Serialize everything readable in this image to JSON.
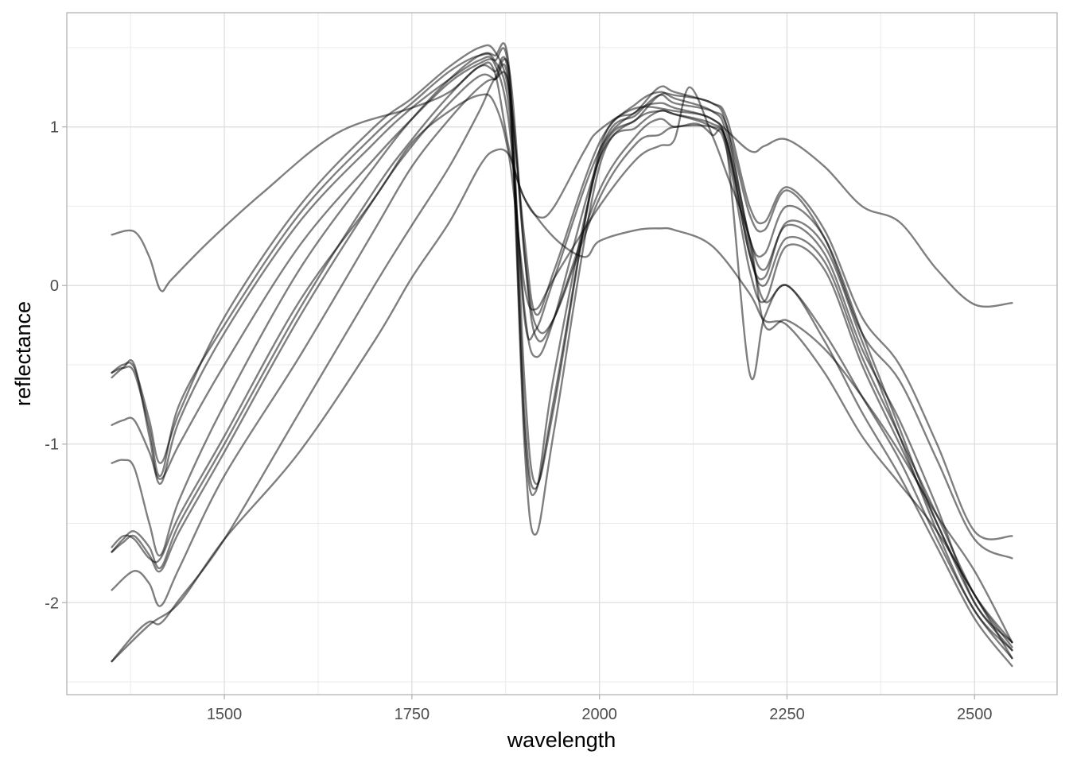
{
  "chart_data": {
    "type": "line",
    "title": "",
    "xlabel": "wavelength",
    "ylabel": "reflectance",
    "xlim": [
      1290,
      2610
    ],
    "ylim": [
      -2.58,
      1.72
    ],
    "xticks": [
      1500,
      1750,
      2000,
      2250,
      2500
    ],
    "yticks": [
      -2,
      -1,
      0,
      1
    ],
    "grid": true,
    "legend": "none",
    "line_color": "#000000",
    "line_opacity": 0.5,
    "series": [
      {
        "x": [
          1350,
          1380,
          1400,
          1415,
          1430,
          1480,
          1550,
          1650,
          1750,
          1800,
          1840,
          1860,
          1880,
          1900,
          1920,
          1940,
          1980,
          2000,
          2050,
          2100,
          2150,
          2200,
          2220,
          2250,
          2300,
          2350,
          2400,
          2450,
          2500,
          2550
        ],
        "y": [
          0.32,
          0.34,
          0.18,
          -0.03,
          0.04,
          0.28,
          0.58,
          0.96,
          1.12,
          1.22,
          1.38,
          1.35,
          0.85,
          0.55,
          0.43,
          0.5,
          0.85,
          0.98,
          1.12,
          1.1,
          1.05,
          0.85,
          0.88,
          0.92,
          0.75,
          0.5,
          0.4,
          0.1,
          -0.12,
          -0.11
        ]
      },
      {
        "x": [
          1350,
          1365,
          1380,
          1400,
          1415,
          1440,
          1500,
          1600,
          1700,
          1750,
          1800,
          1840,
          1860,
          1880,
          1900,
          1915,
          1940,
          2000,
          2050,
          2080,
          2100,
          2150,
          2170,
          2200,
          2220,
          2250,
          2300,
          2350,
          2400,
          2450,
          2500,
          2550
        ],
        "y": [
          -0.55,
          -0.5,
          -0.52,
          -0.85,
          -1.12,
          -0.8,
          -0.2,
          0.5,
          1.0,
          1.18,
          1.38,
          1.5,
          1.48,
          1.2,
          0.3,
          -0.18,
          0.1,
          0.9,
          1.15,
          1.22,
          1.18,
          1.1,
          0.95,
          0.3,
          0.1,
          0.38,
          0.2,
          -0.4,
          -0.85,
          -1.4,
          -2.0,
          -2.25
        ]
      },
      {
        "x": [
          1350,
          1365,
          1380,
          1400,
          1415,
          1440,
          1500,
          1600,
          1700,
          1750,
          1800,
          1840,
          1860,
          1880,
          1900,
          1915,
          1940,
          2000,
          2050,
          2080,
          2100,
          2150,
          2170,
          2200,
          2220,
          2250,
          2300,
          2350,
          2400,
          2450,
          2500,
          2550
        ],
        "y": [
          -0.55,
          -0.52,
          -0.55,
          -0.9,
          -1.2,
          -0.75,
          -0.25,
          0.45,
          0.95,
          1.15,
          1.35,
          1.45,
          1.42,
          1.1,
          -0.2,
          -0.28,
          0.05,
          0.85,
          1.1,
          1.15,
          1.12,
          1.05,
          0.9,
          0.2,
          0.0,
          0.3,
          0.15,
          -0.45,
          -0.95,
          -1.45,
          -1.95,
          -2.28
        ]
      },
      {
        "x": [
          1350,
          1365,
          1380,
          1400,
          1415,
          1440,
          1500,
          1600,
          1700,
          1750,
          1800,
          1840,
          1860,
          1880,
          1900,
          1915,
          1940,
          2000,
          2050,
          2080,
          2100,
          2150,
          2170,
          2200,
          2220,
          2250,
          2300,
          2350,
          2400,
          2450,
          2500,
          2550
        ],
        "y": [
          -0.58,
          -0.52,
          -0.5,
          -0.95,
          -1.25,
          -0.85,
          -0.3,
          0.4,
          0.9,
          1.12,
          1.3,
          1.42,
          1.4,
          1.0,
          -0.15,
          -0.45,
          -0.2,
          0.8,
          1.05,
          1.1,
          1.08,
          1.0,
          0.85,
          0.1,
          -0.1,
          0.25,
          0.1,
          -0.5,
          -1.0,
          -1.5,
          -2.0,
          -2.3
        ]
      },
      {
        "x": [
          1350,
          1365,
          1380,
          1400,
          1415,
          1440,
          1500,
          1600,
          1700,
          1750,
          1800,
          1840,
          1860,
          1880,
          1900,
          1915,
          1940,
          2000,
          2050,
          2080,
          2100,
          2150,
          2170,
          2200,
          2220,
          2250,
          2300,
          2350,
          2400,
          2450,
          2500,
          2550
        ],
        "y": [
          -0.88,
          -0.85,
          -0.85,
          -1.05,
          -1.22,
          -1.0,
          -0.5,
          0.25,
          0.8,
          1.05,
          1.28,
          1.4,
          1.42,
          1.3,
          -0.8,
          -1.28,
          -0.7,
          0.82,
          1.08,
          1.2,
          1.15,
          1.1,
          1.0,
          0.45,
          0.35,
          0.6,
          0.3,
          -0.3,
          -0.6,
          -1.1,
          -1.6,
          -1.72
        ]
      },
      {
        "x": [
          1350,
          1365,
          1380,
          1400,
          1415,
          1440,
          1500,
          1600,
          1700,
          1750,
          1800,
          1840,
          1860,
          1880,
          1900,
          1915,
          1940,
          2000,
          2050,
          2080,
          2100,
          2150,
          2170,
          2200,
          2220,
          2250,
          2300,
          2350,
          2400,
          2450,
          2500,
          2550
        ],
        "y": [
          -1.12,
          -1.1,
          -1.15,
          -1.5,
          -1.7,
          -1.35,
          -0.75,
          0.1,
          0.75,
          1.05,
          1.3,
          1.45,
          1.45,
          1.35,
          -0.6,
          -1.25,
          -0.75,
          0.85,
          1.1,
          1.25,
          1.22,
          1.15,
          1.05,
          0.5,
          0.4,
          0.62,
          0.35,
          -0.2,
          -0.5,
          -1.0,
          -1.55,
          -1.58
        ]
      },
      {
        "x": [
          1350,
          1365,
          1380,
          1400,
          1415,
          1440,
          1500,
          1600,
          1700,
          1750,
          1800,
          1840,
          1860,
          1880,
          1900,
          1915,
          1940,
          2000,
          2050,
          2080,
          2100,
          2150,
          2170,
          2200,
          2220,
          2250,
          2300,
          2350,
          2400,
          2450,
          2500,
          2550
        ],
        "y": [
          -1.68,
          -1.6,
          -1.55,
          -1.65,
          -1.78,
          -1.5,
          -1.0,
          -0.15,
          0.6,
          0.92,
          1.2,
          1.38,
          1.35,
          1.25,
          -0.9,
          -1.3,
          -0.55,
          0.8,
          1.05,
          1.2,
          1.2,
          1.15,
          1.0,
          0.3,
          0.2,
          0.5,
          0.3,
          -0.3,
          -0.9,
          -1.5,
          -1.95,
          -2.25
        ]
      },
      {
        "x": [
          1350,
          1365,
          1380,
          1400,
          1415,
          1440,
          1500,
          1600,
          1700,
          1750,
          1800,
          1840,
          1860,
          1880,
          1900,
          1915,
          1940,
          2000,
          2050,
          2080,
          2100,
          2150,
          2170,
          2200,
          2220,
          2250,
          2300,
          2350,
          2400,
          2450,
          2500,
          2550
        ],
        "y": [
          -1.68,
          -1.62,
          -1.58,
          -1.7,
          -1.8,
          -1.55,
          -1.05,
          -0.2,
          0.55,
          0.88,
          1.15,
          1.32,
          1.3,
          1.2,
          -1.0,
          -1.57,
          -0.9,
          0.75,
          1.0,
          1.1,
          1.08,
          1.02,
          0.9,
          0.2,
          0.05,
          0.4,
          0.25,
          -0.35,
          -0.95,
          -1.55,
          -2.05,
          -2.3
        ]
      },
      {
        "x": [
          1350,
          1380,
          1400,
          1415,
          1440,
          1500,
          1600,
          1700,
          1750,
          1800,
          1840,
          1860,
          1880,
          1900,
          1915,
          1940,
          2000,
          2050,
          2080,
          2100,
          2150,
          2170,
          2200,
          2220,
          2250,
          2300,
          2350,
          2400,
          2450,
          2500,
          2550
        ],
        "y": [
          -1.92,
          -1.8,
          -1.88,
          -2.02,
          -1.78,
          -1.2,
          -0.45,
          0.35,
          0.75,
          1.05,
          1.25,
          1.3,
          1.25,
          0.2,
          -0.25,
          -0.2,
          0.55,
          0.9,
          0.95,
          1.0,
          1.0,
          0.9,
          0.25,
          -0.1,
          0.0,
          -0.3,
          -0.7,
          -1.1,
          -1.6,
          -2.05,
          -2.35
        ]
      },
      {
        "x": [
          1350,
          1380,
          1400,
          1415,
          1440,
          1500,
          1600,
          1700,
          1750,
          1800,
          1840,
          1860,
          1880,
          1900,
          1915,
          1940,
          2000,
          2050,
          2080,
          2100,
          2130,
          2150,
          2170,
          2200,
          2220,
          2250,
          2300,
          2350,
          2400,
          2450,
          2500,
          2550
        ],
        "y": [
          -2.37,
          -2.2,
          -2.12,
          -2.13,
          -1.98,
          -1.6,
          -0.8,
          0.0,
          0.38,
          0.75,
          1.1,
          1.3,
          1.35,
          0.2,
          -0.32,
          -0.2,
          0.6,
          0.95,
          1.05,
          1.0,
          1.02,
          0.95,
          0.85,
          -0.55,
          -0.2,
          0.0,
          -0.35,
          -0.8,
          -1.2,
          -1.65,
          -2.1,
          -2.4
        ]
      },
      {
        "x": [
          1350,
          1365,
          1380,
          1400,
          1415,
          1440,
          1500,
          1600,
          1700,
          1750,
          1800,
          1840,
          1860,
          1880,
          1900,
          1915,
          1940,
          2000,
          2050,
          2080,
          2100,
          2120,
          2150,
          2170,
          2200,
          2220,
          2250,
          2300,
          2350,
          2400,
          2450,
          2500,
          2550
        ],
        "y": [
          -1.65,
          -1.58,
          -1.6,
          -1.72,
          -1.72,
          -1.45,
          -0.95,
          -0.1,
          0.55,
          0.9,
          1.1,
          1.2,
          1.15,
          0.8,
          0.0,
          -0.15,
          0.05,
          0.5,
          0.8,
          0.88,
          0.92,
          1.25,
          0.95,
          0.7,
          0.3,
          -0.25,
          -0.22,
          -0.4,
          -0.7,
          -1.05,
          -1.45,
          -1.8,
          -2.25
        ]
      },
      {
        "x": [
          1350,
          1400,
          1440,
          1500,
          1600,
          1700,
          1750,
          1800,
          1840,
          1860,
          1880,
          1900,
          1940,
          1980,
          2000,
          2050,
          2080,
          2100,
          2150,
          2200,
          2220,
          2250,
          2300,
          2350,
          2400,
          2450,
          2500,
          2550
        ],
        "y": [
          -2.37,
          -2.14,
          -2.0,
          -1.6,
          -1.05,
          -0.35,
          0.05,
          0.4,
          0.75,
          0.85,
          0.82,
          0.55,
          0.3,
          0.18,
          0.28,
          0.35,
          0.36,
          0.35,
          0.25,
          -0.05,
          -0.22,
          -0.25,
          -0.55,
          -0.95,
          -1.25,
          -1.55,
          -1.95,
          -2.35
        ]
      }
    ]
  }
}
